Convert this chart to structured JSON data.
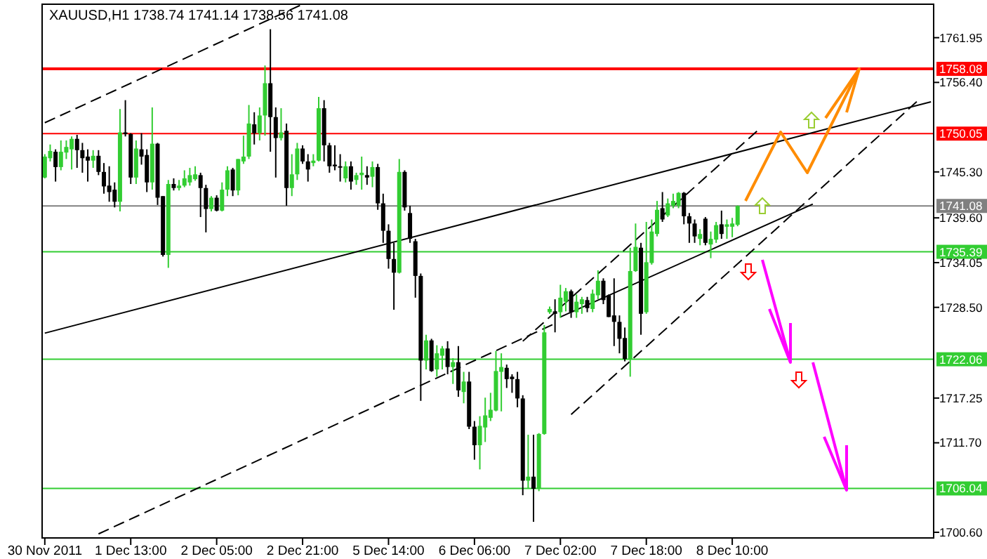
{
  "chart_data": {
    "type": "candlestick",
    "title": "XAUUSD,H1  1738.74 1741.14 1738.56 1741.08",
    "categories": [
      "30 Nov 2011",
      null,
      null,
      null,
      null,
      null,
      null,
      null,
      null,
      null,
      null,
      null,
      null,
      null,
      null,
      null,
      "1 Dec 13:00",
      null,
      null,
      null,
      null,
      null,
      null,
      null,
      null,
      null,
      null,
      null,
      null,
      null,
      null,
      null,
      "2 Dec 05:00",
      null,
      null,
      null,
      null,
      null,
      null,
      null,
      null,
      null,
      null,
      null,
      null,
      null,
      null,
      null,
      "2 Dec 21:00",
      null,
      null,
      null,
      null,
      null,
      null,
      null,
      null,
      null,
      null,
      null,
      null,
      null,
      null,
      null,
      "5 Dec 14:00",
      null,
      null,
      null,
      null,
      null,
      null,
      null,
      null,
      null,
      null,
      null,
      null,
      null,
      null,
      null,
      "6 Dec 06:00",
      null,
      null,
      null,
      null,
      null,
      null,
      null,
      null,
      null,
      null,
      null,
      null,
      null,
      null,
      null,
      "7 Dec 02:00",
      null,
      null,
      null,
      null,
      null,
      null,
      null,
      null,
      null,
      null,
      null,
      null,
      null,
      null,
      null,
      "7 Dec 18:00",
      null,
      null,
      null,
      null,
      null,
      null,
      null,
      null,
      null,
      null,
      null,
      null,
      null,
      null,
      null,
      "8 Dec 10:00",
      null,
      null,
      null,
      null,
      null,
      null,
      null,
      null,
      null,
      null,
      null,
      null,
      null,
      null,
      null,
      null,
      null,
      null,
      null,
      null,
      null,
      null,
      null,
      null,
      null,
      null,
      null,
      null,
      null,
      null,
      null,
      null,
      null,
      null,
      null,
      null,
      null
    ],
    "ohlc": [
      [
        1744.6,
        1747.5,
        1744.5,
        1747.2
      ],
      [
        1747.0,
        1748.7,
        1746.6,
        1747.9
      ],
      [
        1747.8,
        1748.1,
        1744.1,
        1745.9
      ],
      [
        1745.9,
        1749.2,
        1745.5,
        1747.8
      ],
      [
        1747.7,
        1749.2,
        1746.9,
        1748.4
      ],
      [
        1748.1,
        1749.7,
        1745.6,
        1749.4
      ],
      [
        1749.4,
        1749.9,
        1745.8,
        1748.0
      ],
      [
        1748.0,
        1748.9,
        1745.2,
        1747.0
      ],
      [
        1747.2,
        1748.1,
        1744.1,
        1746.7
      ],
      [
        1746.7,
        1748.0,
        1745.8,
        1747.3
      ],
      [
        1747.3,
        1748.0,
        1744.9,
        1745.3
      ],
      [
        1745.3,
        1746.4,
        1742.6,
        1743.5
      ],
      [
        1743.6,
        1746.0,
        1741.6,
        1742.8
      ],
      [
        1743.1,
        1744.0,
        1740.9,
        1741.6
      ],
      [
        1741.6,
        1753.1,
        1740.4,
        1750.2
      ],
      [
        1750.2,
        1754.2,
        1749.7,
        1750.0
      ],
      [
        1750.0,
        1750.1,
        1743.8,
        1744.6
      ],
      [
        1744.6,
        1749.2,
        1743.8,
        1748.2
      ],
      [
        1748.1,
        1750.1,
        1746.2,
        1747.2
      ],
      [
        1747.4,
        1748.1,
        1742.8,
        1744.0
      ],
      [
        1744.0,
        1753.3,
        1743.1,
        1748.8
      ],
      [
        1748.8,
        1748.9,
        1741.2,
        1742.1
      ],
      [
        1742.3,
        1742.3,
        1734.8,
        1735.0
      ],
      [
        1735.0,
        1744.3,
        1733.4,
        1743.8
      ],
      [
        1743.8,
        1744.5,
        1743.0,
        1743.3
      ],
      [
        1743.3,
        1744.3,
        1743.0,
        1743.6
      ],
      [
        1743.6,
        1745.5,
        1743.4,
        1744.5
      ],
      [
        1744.0,
        1745.8,
        1743.6,
        1744.9
      ],
      [
        1744.4,
        1746.0,
        1744.2,
        1745.0
      ],
      [
        1744.9,
        1745.2,
        1739.7,
        1743.3
      ],
      [
        1743.3,
        1743.7,
        1737.8,
        1740.7
      ],
      [
        1740.7,
        1742.3,
        1740.4,
        1742.1
      ],
      [
        1742.1,
        1742.4,
        1740.4,
        1740.5
      ],
      [
        1740.5,
        1744.0,
        1740.4,
        1743.1
      ],
      [
        1743.1,
        1746.0,
        1742.3,
        1745.5
      ],
      [
        1745.6,
        1745.8,
        1742.3,
        1743.0
      ],
      [
        1743.0,
        1746.9,
        1742.4,
        1746.9
      ],
      [
        1746.6,
        1749.8,
        1746.3,
        1747.2
      ],
      [
        1747.2,
        1753.6,
        1746.9,
        1751.3
      ],
      [
        1751.2,
        1752.7,
        1748.7,
        1750.1
      ],
      [
        1750.1,
        1753.3,
        1749.2,
        1752.3
      ],
      [
        1752.3,
        1758.5,
        1749.8,
        1756.3
      ],
      [
        1756.3,
        1763.0,
        1747.8,
        1752.1
      ],
      [
        1752.1,
        1753.3,
        1744.6,
        1749.5
      ],
      [
        1749.5,
        1753.2,
        1749.2,
        1750.2
      ],
      [
        1750.4,
        1751.3,
        1741.1,
        1743.3
      ],
      [
        1743.3,
        1747.5,
        1742.3,
        1745.0
      ],
      [
        1745.0,
        1748.9,
        1744.3,
        1748.2
      ],
      [
        1748.2,
        1748.6,
        1746.3,
        1746.6
      ],
      [
        1746.6,
        1747.5,
        1744.1,
        1745.6
      ],
      [
        1746.4,
        1747.5,
        1746.0,
        1746.7
      ],
      [
        1746.7,
        1754.6,
        1746.6,
        1753.2
      ],
      [
        1753.2,
        1754.2,
        1746.6,
        1748.6
      ],
      [
        1748.6,
        1748.9,
        1745.2,
        1746.0
      ],
      [
        1746.2,
        1748.6,
        1745.5,
        1746.0
      ],
      [
        1746.0,
        1747.5,
        1744.1,
        1745.9
      ],
      [
        1744.5,
        1746.6,
        1744.0,
        1746.0
      ],
      [
        1746.0,
        1746.6,
        1743.1,
        1744.1
      ],
      [
        1744.3,
        1745.2,
        1743.7,
        1744.9
      ],
      [
        1744.9,
        1747.2,
        1743.1,
        1745.2
      ],
      [
        1744.9,
        1746.0,
        1743.7,
        1744.6
      ],
      [
        1744.7,
        1746.6,
        1743.4,
        1745.9
      ],
      [
        1745.9,
        1746.3,
        1740.6,
        1741.4
      ],
      [
        1741.4,
        1742.6,
        1736.5,
        1738.0
      ],
      [
        1738.0,
        1738.8,
        1733.3,
        1734.5
      ],
      [
        1734.5,
        1736.5,
        1728.2,
        1732.8
      ],
      [
        1732.8,
        1746.9,
        1732.7,
        1745.3
      ],
      [
        1745.3,
        1745.5,
        1740.5,
        1740.9
      ],
      [
        1740.2,
        1741.1,
        1736.5,
        1737.0
      ],
      [
        1736.7,
        1737.0,
        1729.7,
        1732.4
      ],
      [
        1732.4,
        1732.7,
        1716.9,
        1721.9
      ],
      [
        1721.9,
        1725.1,
        1720.8,
        1724.4
      ],
      [
        1724.4,
        1724.6,
        1720.5,
        1720.6
      ],
      [
        1720.8,
        1723.8,
        1719.9,
        1722.8
      ],
      [
        1722.5,
        1723.7,
        1720.8,
        1723.4
      ],
      [
        1723.4,
        1724.3,
        1720.2,
        1721.1
      ],
      [
        1721.1,
        1722.2,
        1719.0,
        1721.7
      ],
      [
        1721.7,
        1723.7,
        1717.4,
        1718.2
      ],
      [
        1718.0,
        1720.5,
        1716.6,
        1719.3
      ],
      [
        1719.3,
        1720.5,
        1713.4,
        1713.7
      ],
      [
        1713.7,
        1714.4,
        1709.6,
        1711.4
      ],
      [
        1711.4,
        1715.0,
        1708.4,
        1713.8
      ],
      [
        1713.6,
        1717.3,
        1711.8,
        1715.1
      ],
      [
        1714.8,
        1717.9,
        1714.4,
        1715.8
      ],
      [
        1715.7,
        1723.1,
        1715.6,
        1720.6
      ],
      [
        1720.5,
        1722.8,
        1715.6,
        1721.1
      ],
      [
        1721.0,
        1721.4,
        1718.5,
        1719.6
      ],
      [
        1719.9,
        1720.2,
        1717.9,
        1719.6
      ],
      [
        1719.6,
        1720.5,
        1716.1,
        1717.2
      ],
      [
        1717.2,
        1717.6,
        1705.2,
        1707.0
      ],
      [
        1707.0,
        1712.7,
        1706.0,
        1707.5
      ],
      [
        1707.5,
        1712.7,
        1701.9,
        1706.0
      ],
      [
        1706.0,
        1712.9,
        1705.7,
        1712.8
      ],
      [
        1712.8,
        1726.3,
        1712.7,
        1725.4
      ],
      [
        1727.9,
        1728.6,
        1727.7,
        1728.3
      ],
      [
        1728.0,
        1729.5,
        1725.4,
        1727.7
      ],
      [
        1727.9,
        1731.3,
        1727.2,
        1729.7
      ],
      [
        1729.2,
        1730.9,
        1728.0,
        1730.5
      ],
      [
        1730.5,
        1730.7,
        1727.2,
        1727.9
      ],
      [
        1727.9,
        1730.1,
        1727.2,
        1729.2
      ],
      [
        1728.9,
        1729.8,
        1727.7,
        1729.5
      ],
      [
        1729.4,
        1729.8,
        1727.9,
        1728.4
      ],
      [
        1728.3,
        1730.7,
        1727.9,
        1730.2
      ],
      [
        1730.0,
        1733.1,
        1729.5,
        1731.8
      ],
      [
        1731.8,
        1732.1,
        1728.9,
        1729.4
      ],
      [
        1730.0,
        1730.1,
        1727.3,
        1727.3
      ],
      [
        1727.5,
        1732.1,
        1723.7,
        1726.7
      ],
      [
        1726.7,
        1727.5,
        1722.8,
        1724.6
      ],
      [
        1724.7,
        1726.0,
        1721.8,
        1722.1
      ],
      [
        1722.1,
        1735.9,
        1719.9,
        1733.0
      ],
      [
        1733.0,
        1738.9,
        1732.9,
        1736.0
      ],
      [
        1735.9,
        1736.5,
        1725.1,
        1727.7
      ],
      [
        1727.9,
        1739.1,
        1727.7,
        1734.1
      ],
      [
        1734.0,
        1739.4,
        1733.8,
        1737.9
      ],
      [
        1737.6,
        1741.7,
        1737.3,
        1740.6
      ],
      [
        1740.8,
        1742.8,
        1739.1,
        1739.4
      ],
      [
        1739.9,
        1742.0,
        1739.7,
        1741.4
      ],
      [
        1741.1,
        1742.6,
        1740.8,
        1741.7
      ],
      [
        1741.1,
        1742.8,
        1740.8,
        1742.7
      ],
      [
        1742.7,
        1742.8,
        1738.8,
        1739.8
      ],
      [
        1739.8,
        1740.2,
        1736.5,
        1738.9
      ],
      [
        1738.9,
        1739.4,
        1736.5,
        1737.3
      ],
      [
        1737.0,
        1738.2,
        1736.2,
        1737.6
      ],
      [
        1739.5,
        1739.7,
        1736.2,
        1736.5
      ],
      [
        1736.3,
        1737.9,
        1734.6,
        1737.0
      ],
      [
        1736.9,
        1739.1,
        1736.5,
        1738.7
      ],
      [
        1738.8,
        1740.5,
        1737.0,
        1737.6
      ],
      [
        1738.5,
        1739.4,
        1737.0,
        1738.8
      ],
      [
        1738.5,
        1739.6,
        1737.2,
        1738.9
      ],
      [
        1738.74,
        1741.14,
        1738.56,
        1741.08
      ],
      null,
      null,
      null,
      null,
      null,
      null,
      null,
      null,
      null,
      null,
      null,
      null,
      null,
      null,
      null,
      null,
      null,
      null,
      null,
      null,
      null,
      null,
      null,
      null,
      null,
      null,
      null,
      null,
      null,
      null,
      null,
      null,
      null,
      null,
      null,
      null
    ],
    "colors": [
      "#32cd32",
      "#32cd32",
      "#000000",
      "#32cd32",
      "#32cd32",
      "#32cd32",
      "#000000",
      "#000000",
      "#000000",
      "#32cd32",
      "#000000",
      "#000000",
      "#000000",
      "#000000",
      "#32cd32",
      "#000000",
      "#000000",
      "#32cd32",
      "#000000",
      "#000000",
      "#32cd32",
      "#000000",
      "#000000",
      "#32cd32",
      "#000000",
      "#32cd32",
      "#32cd32",
      "#32cd32",
      "#32cd32",
      "#000000",
      "#000000",
      "#32cd32",
      "#000000",
      "#32cd32",
      "#32cd32",
      "#000000",
      "#32cd32",
      "#32cd32",
      "#32cd32",
      "#000000",
      "#32cd32",
      "#32cd32",
      "#000000",
      "#000000",
      "#32cd32",
      "#000000",
      "#32cd32",
      "#32cd32",
      "#000000",
      "#000000",
      "#32cd32",
      "#32cd32",
      "#000000",
      "#000000",
      "#000000",
      "#000000",
      "#32cd32",
      "#000000",
      "#32cd32",
      "#32cd32",
      "#000000",
      "#32cd32",
      "#000000",
      "#000000",
      "#000000",
      "#000000",
      "#32cd32",
      "#000000",
      "#000000",
      "#000000",
      "#000000",
      "#32cd32",
      "#000000",
      "#32cd32",
      "#32cd32",
      "#000000",
      "#32cd32",
      "#000000",
      "#32cd32",
      "#000000",
      "#000000",
      "#32cd32",
      "#32cd32",
      "#32cd32",
      "#32cd32",
      "#32cd32",
      "#000000",
      "#000000",
      "#000000",
      "#000000",
      "#32cd32",
      "#000000",
      "#32cd32",
      "#32cd32",
      "#32cd32",
      "#000000",
      "#32cd32",
      "#32cd32",
      "#000000",
      "#32cd32",
      "#32cd32",
      "#000000",
      "#32cd32",
      "#32cd32",
      "#000000",
      "#000000",
      "#000000",
      "#000000",
      "#000000",
      "#32cd32",
      "#32cd32",
      "#000000",
      "#32cd32",
      "#32cd32",
      "#32cd32",
      "#000000",
      "#32cd32",
      "#32cd32",
      "#32cd32",
      "#000000",
      "#000000",
      "#000000",
      "#32cd32",
      "#000000",
      "#32cd32",
      "#32cd32",
      "#000000",
      "#32cd32",
      "#32cd32",
      "#32cd32",
      null,
      null,
      null,
      null,
      null,
      null,
      null,
      null,
      null,
      null,
      null,
      null,
      null,
      null,
      null,
      null,
      null,
      null,
      null,
      null,
      null,
      null,
      null,
      null,
      null,
      null,
      null,
      null,
      null,
      null,
      null,
      null,
      null,
      null,
      null,
      null
    ],
    "series": [
      {
        "type": "line",
        "color": "#000000",
        "line_style": "dashed",
        "values": [
          1751.4,
          null,
          null,
          null,
          null,
          null,
          null,
          null,
          null,
          null,
          null,
          null,
          null,
          null,
          null,
          null,
          null,
          null,
          null,
          null,
          null,
          null,
          null,
          null,
          null,
          null,
          null,
          null,
          null,
          null,
          null,
          null,
          null,
          null,
          null,
          null,
          null,
          null,
          null,
          null,
          null,
          null,
          null,
          null,
          null,
          null,
          null,
          null,
          1766.1,
          null,
          null,
          null,
          null,
          null,
          null,
          null,
          null,
          null,
          null,
          null,
          null,
          null,
          null,
          null,
          null,
          null,
          null,
          null,
          null,
          null,
          null,
          null,
          null,
          null,
          null,
          null,
          null,
          null,
          null,
          null,
          null,
          null,
          null,
          null,
          null,
          null,
          null,
          null,
          null,
          null,
          null,
          null,
          null,
          null,
          null,
          null,
          null,
          null,
          null,
          null,
          null,
          null,
          null,
          null,
          null,
          null,
          null,
          null,
          null,
          null,
          null,
          null,
          null,
          null,
          null,
          null,
          null,
          null,
          null,
          null,
          null,
          null,
          null,
          null,
          null,
          null,
          null,
          null,
          null,
          null,
          null,
          null,
          null,
          null,
          null,
          null,
          null,
          null,
          null,
          null,
          null,
          null,
          null,
          null,
          null,
          null,
          null,
          null,
          null,
          null,
          null,
          null,
          null,
          null,
          null,
          null,
          null,
          null,
          null,
          null,
          null,
          null,
          null,
          null,
          null,
          null
        ]
      },
      {
        "type": "line",
        "color": "#000000",
        "line_style": "dashed",
        "values": [
          null,
          null,
          null,
          null,
          null,
          null,
          null,
          null,
          null,
          null,
          1700.4,
          null,
          null,
          null,
          null,
          null,
          null,
          null,
          null,
          null,
          null,
          null,
          null,
          null,
          null,
          null,
          null,
          null,
          null,
          null,
          null,
          null,
          null,
          null,
          null,
          null,
          null,
          null,
          null,
          null,
          null,
          null,
          null,
          null,
          null,
          null,
          null,
          null,
          null,
          null,
          null,
          null,
          null,
          null,
          null,
          null,
          null,
          null,
          null,
          null,
          null,
          null,
          null,
          null,
          null,
          null,
          null,
          null,
          null,
          null,
          null,
          null,
          null,
          null,
          null,
          null,
          null,
          null,
          null,
          null,
          null,
          null,
          null,
          null,
          null,
          null,
          null,
          null,
          null,
          null,
          null,
          null,
          null,
          null,
          null,
          1726.5,
          null,
          null,
          null,
          null,
          null,
          null,
          null,
          null,
          null,
          null,
          null,
          null,
          null,
          null,
          null,
          null,
          null,
          null,
          null,
          null,
          null,
          null,
          null,
          null,
          null,
          null,
          null,
          null,
          null,
          null,
          null,
          null,
          null,
          null,
          null,
          null,
          null,
          null,
          null,
          null,
          null,
          null,
          null,
          null,
          null,
          null,
          null,
          null,
          null,
          null,
          null,
          null,
          null,
          null,
          null,
          null,
          null,
          null,
          null,
          null,
          null,
          null,
          null,
          null,
          null,
          null,
          null,
          null,
          null,
          null
        ]
      },
      {
        "type": "line",
        "color": "#000000",
        "line_style": "solid",
        "values": [
          1725.3,
          null,
          null,
          null,
          null,
          null,
          null,
          null,
          null,
          null,
          null,
          null,
          null,
          null,
          null,
          null,
          null,
          null,
          null,
          null,
          null,
          null,
          null,
          null,
          null,
          null,
          null,
          null,
          null,
          null,
          null,
          null,
          null,
          null,
          null,
          null,
          null,
          null,
          null,
          null,
          null,
          null,
          null,
          null,
          null,
          null,
          null,
          null,
          null,
          null,
          null,
          null,
          null,
          null,
          null,
          null,
          null,
          null,
          null,
          null,
          null,
          null,
          null,
          null,
          null,
          null,
          null,
          null,
          null,
          null,
          null,
          null,
          null,
          null,
          null,
          null,
          null,
          null,
          null,
          null,
          null,
          null,
          null,
          null,
          null,
          null,
          null,
          null,
          null,
          null,
          null,
          null,
          null,
          null,
          null,
          null,
          null,
          null,
          null,
          null,
          null,
          null,
          null,
          null,
          null,
          null,
          null,
          null,
          null,
          null,
          null,
          null,
          null,
          null,
          null,
          null,
          null,
          null,
          null,
          null,
          null,
          null,
          null,
          null,
          null,
          null,
          null,
          null,
          null,
          null,
          null,
          null,
          null,
          null,
          null,
          null,
          null,
          null,
          null,
          null,
          null,
          null,
          null,
          null,
          null,
          null,
          null,
          null,
          null,
          null,
          null,
          null,
          null,
          null,
          null,
          null,
          null,
          null,
          null,
          null,
          null,
          null,
          null,
          null,
          null,
          1754.0
        ]
      },
      {
        "type": "line",
        "color": "#000000",
        "line_style": "solid",
        "values": [
          null,
          null,
          null,
          null,
          null,
          null,
          null,
          null,
          null,
          null,
          null,
          null,
          null,
          null,
          null,
          null,
          null,
          null,
          null,
          null,
          null,
          null,
          null,
          null,
          null,
          null,
          null,
          null,
          null,
          null,
          null,
          null,
          null,
          null,
          null,
          null,
          null,
          null,
          null,
          null,
          null,
          null,
          null,
          null,
          null,
          null,
          null,
          null,
          null,
          null,
          null,
          null,
          null,
          null,
          null,
          null,
          null,
          null,
          null,
          null,
          null,
          null,
          null,
          null,
          null,
          null,
          null,
          null,
          null,
          null,
          null,
          null,
          null,
          null,
          null,
          null,
          null,
          null,
          null,
          null,
          null,
          null,
          null,
          null,
          null,
          null,
          null,
          null,
          null,
          null,
          null,
          null,
          null,
          null,
          null,
          null,
          1727.3,
          null,
          null,
          null,
          null,
          null,
          null,
          null,
          null,
          null,
          null,
          null,
          null,
          null,
          null,
          null,
          null,
          null,
          null,
          null,
          null,
          null,
          null,
          null,
          null,
          null,
          null,
          null,
          null,
          null,
          null,
          null,
          null,
          null,
          null,
          null,
          null,
          null,
          null,
          null,
          null,
          null,
          null,
          null,
          null,
          null,
          null,
          1741.3,
          null,
          null,
          null,
          null,
          null,
          null,
          null,
          null,
          null,
          null,
          null,
          null,
          null,
          null,
          null,
          null,
          null,
          null,
          null,
          null,
          null,
          null
        ]
      },
      {
        "type": "line",
        "color": "#000000",
        "line_style": "dashed",
        "values": [
          null,
          null,
          null,
          null,
          null,
          null,
          null,
          null,
          null,
          null,
          null,
          null,
          null,
          null,
          null,
          null,
          null,
          null,
          null,
          null,
          null,
          null,
          null,
          null,
          null,
          null,
          null,
          null,
          null,
          null,
          null,
          null,
          null,
          null,
          null,
          null,
          null,
          null,
          null,
          null,
          null,
          null,
          null,
          null,
          null,
          null,
          null,
          null,
          null,
          null,
          null,
          null,
          null,
          null,
          null,
          null,
          null,
          null,
          null,
          null,
          null,
          null,
          null,
          null,
          null,
          null,
          null,
          null,
          null,
          null,
          null,
          null,
          null,
          null,
          null,
          null,
          null,
          null,
          null,
          null,
          null,
          null,
          null,
          null,
          null,
          null,
          null,
          null,
          null,
          1724.3,
          null,
          null,
          null,
          null,
          null,
          null,
          null,
          null,
          null,
          null,
          null,
          null,
          null,
          null,
          null,
          null,
          null,
          null,
          null,
          null,
          null,
          null,
          null,
          null,
          null,
          null,
          null,
          null,
          null,
          null,
          null,
          null,
          null,
          null,
          null,
          null,
          null,
          null,
          null,
          null,
          null,
          null,
          null,
          1750.6,
          null,
          null,
          null,
          null,
          null,
          null,
          null,
          null,
          null,
          null,
          null,
          null,
          null,
          null,
          null,
          null,
          null,
          null,
          null,
          null,
          null,
          null,
          null,
          null,
          null,
          null,
          null,
          null,
          null,
          null,
          null,
          null
        ]
      },
      {
        "type": "line",
        "color": "#000000",
        "line_style": "dashed",
        "values": [
          null,
          null,
          null,
          null,
          null,
          null,
          null,
          null,
          null,
          null,
          null,
          null,
          null,
          null,
          null,
          null,
          null,
          null,
          null,
          null,
          null,
          null,
          null,
          null,
          null,
          null,
          null,
          null,
          null,
          null,
          null,
          null,
          null,
          null,
          null,
          null,
          null,
          null,
          null,
          null,
          null,
          null,
          null,
          null,
          null,
          null,
          null,
          null,
          null,
          null,
          null,
          null,
          null,
          null,
          null,
          null,
          null,
          null,
          null,
          null,
          null,
          null,
          null,
          null,
          null,
          null,
          null,
          null,
          null,
          null,
          null,
          null,
          null,
          null,
          null,
          null,
          null,
          null,
          null,
          null,
          null,
          null,
          null,
          null,
          null,
          null,
          null,
          null,
          null,
          null,
          null,
          null,
          null,
          null,
          null,
          null,
          null,
          null,
          1715.2,
          null,
          null,
          null,
          null,
          null,
          null,
          null,
          null,
          null,
          null,
          null,
          null,
          null,
          null,
          null,
          null,
          null,
          null,
          null,
          null,
          null,
          null,
          null,
          null,
          null,
          null,
          null,
          null,
          null,
          null,
          null,
          null,
          null,
          null,
          null,
          null,
          null,
          null,
          null,
          null,
          null,
          null,
          null,
          null,
          null,
          null,
          null,
          null,
          null,
          null,
          null,
          null,
          null,
          null,
          null,
          null,
          null,
          null,
          null,
          null,
          null,
          null,
          null,
          null,
          1754.4,
          null,
          null
        ]
      }
    ],
    "ylim": [
      1699.9,
      1766.1
    ],
    "yticks": [
      1761.95,
      {
        "value": 1756.4,
        "label": "1756.40"
      },
      {
        "value": 1745.3,
        "label": "1745.30"
      },
      {
        "value": 1739.6,
        "label": "1739.60"
      },
      1734.05,
      {
        "value": 1728.5,
        "label": "1728.50"
      },
      1717.25,
      {
        "value": 1711.7,
        "label": "1711.70"
      },
      {
        "value": 1700.6,
        "label": "1700.60"
      }
    ],
    "ref_lines": [
      {
        "axis": "y",
        "value": 1758.08,
        "label": "1758.08",
        "color": "#ff0000"
      },
      {
        "axis": "y",
        "value": 1750.05,
        "label": "1750.05",
        "color": "#ff0000"
      },
      {
        "axis": "y",
        "value": 1741.08,
        "label": "1741.08",
        "color": "#808080"
      },
      {
        "axis": "y",
        "value": 1735.39,
        "label": "1735.39",
        "color": "#32cd32"
      },
      {
        "axis": "y",
        "value": 1722.06,
        "label": "1722.06",
        "color": "#32cd32"
      },
      {
        "axis": "y",
        "value": 1706.04,
        "label": "1706.04",
        "color": "#32cd32"
      }
    ]
  }
}
